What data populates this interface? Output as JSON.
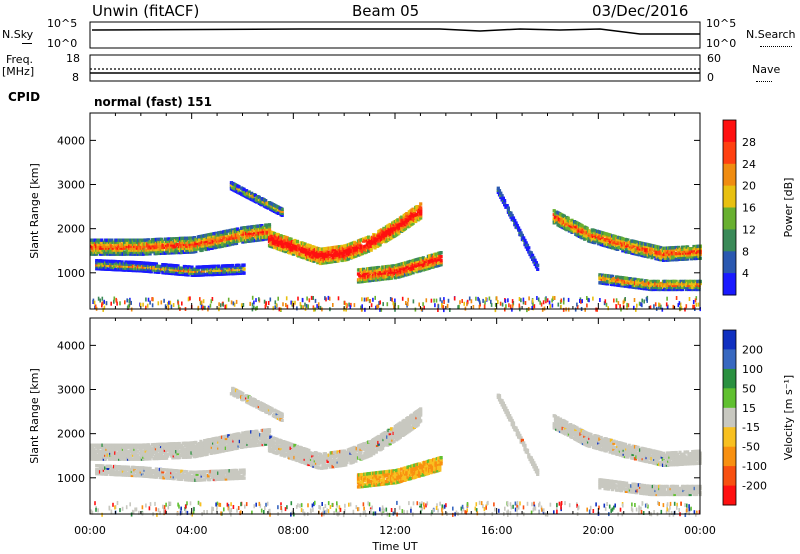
{
  "header": {
    "station_label": "Unwin (fitACF)",
    "beam_label": "Beam 05",
    "date_label": "03/Dec/2016"
  },
  "top_panels": {
    "nsky_label": "N.Sky",
    "nsky_ticks": [
      "10^5",
      "10^0"
    ],
    "nsearch_label": "N.Search",
    "nsearch_ticks": [
      "10^5",
      "10^0"
    ],
    "freq_label": "Freq.",
    "freq_unit": "[MHz]",
    "freq_ticks": [
      "18",
      "8"
    ],
    "nave_label": "Nave",
    "nave_ticks": [
      "60",
      "0"
    ],
    "cpid_label": "CPID",
    "cpid_value": "normal (fast) 151"
  },
  "chart_data": [
    {
      "type": "heatmap",
      "name": "power",
      "ylabel": "Slant Range [km]",
      "yticks": [
        "1000",
        "2000",
        "3000",
        "4000"
      ],
      "ylim": [
        180,
        4620
      ],
      "xlim": [
        0,
        24
      ],
      "colorbar_label": "Power [dB]",
      "colorbar_ticks": [
        "4",
        "8",
        "12",
        "16",
        "20",
        "24",
        "28"
      ],
      "colors": [
        "#1a1aff",
        "#2a58b0",
        "#3a8a58",
        "#68b030",
        "#e8c010",
        "#f08c10",
        "#ff4010",
        "#ff1010"
      ],
      "bands": [
        {
          "t": [
            0.0,
            2.0,
            4.0,
            6.0,
            7.0
          ],
          "r": [
            1600,
            1600,
            1650,
            1880,
            1950
          ],
          "w": 160,
          "c": 0.55
        },
        {
          "t": [
            7.0,
            8.0,
            9.0,
            10.0,
            11.0,
            12.0,
            13.0
          ],
          "r": [
            1800,
            1600,
            1400,
            1480,
            1700,
            2050,
            2450
          ],
          "w": 170,
          "c": 0.8
        },
        {
          "t": [
            0.2,
            2.0,
            4.0,
            6.0
          ],
          "r": [
            1200,
            1150,
            1050,
            1100
          ],
          "w": 90,
          "c": 0.3
        },
        {
          "t": [
            10.5,
            12.0,
            13.8
          ],
          "r": [
            950,
            1050,
            1350
          ],
          "w": 140,
          "c": 0.7
        },
        {
          "t": [
            5.5,
            6.5,
            7.5
          ],
          "r": [
            3000,
            2700,
            2400
          ],
          "w": 80,
          "c": 0.3
        },
        {
          "t": [
            18.2,
            19.5,
            21.0,
            22.5,
            24.0
          ],
          "r": [
            2300,
            1900,
            1650,
            1450,
            1500
          ],
          "w": 150,
          "c": 0.55
        },
        {
          "t": [
            20.0,
            22.0,
            24.0
          ],
          "r": [
            900,
            750,
            750
          ],
          "w": 110,
          "c": 0.45
        },
        {
          "t": [
            16.0,
            16.8,
            17.6
          ],
          "r": [
            2900,
            2000,
            1100
          ],
          "w": 60,
          "c": 0.1
        }
      ]
    },
    {
      "type": "heatmap",
      "name": "velocity",
      "ylabel": "Slant Range [km]",
      "yticks": [
        "1000",
        "2000",
        "3000",
        "4000"
      ],
      "ylim": [
        180,
        4620
      ],
      "xlim": [
        0,
        24
      ],
      "xlabel": "Time UT",
      "xticks": [
        "00:00",
        "04:00",
        "08:00",
        "12:00",
        "16:00",
        "20:00",
        "00:00"
      ],
      "colorbar_label": "Velocity [m s⁻¹]",
      "colorbar_ticks": [
        "200",
        "100",
        "50",
        "15",
        "-15",
        "-50",
        "-100",
        "-200"
      ],
      "colors": [
        "#1030c0",
        "#3868c0",
        "#2a9040",
        "#60c030",
        "#c8c8c0",
        "#f8c020",
        "#f89010",
        "#f85010",
        "#ff1010"
      ],
      "bands": [
        {
          "t": [
            0.0,
            2.0,
            4.0,
            6.0,
            7.0
          ],
          "r": [
            1600,
            1600,
            1650,
            1880,
            1950
          ],
          "w": 160,
          "c": 0.0
        },
        {
          "t": [
            7.0,
            8.0,
            9.0,
            10.0,
            11.0,
            12.0,
            13.0
          ],
          "r": [
            1800,
            1600,
            1400,
            1480,
            1700,
            2050,
            2450
          ],
          "w": 170,
          "c": 0.0
        },
        {
          "t": [
            0.2,
            2.0,
            4.0,
            6.0
          ],
          "r": [
            1200,
            1150,
            1050,
            1100
          ],
          "w": 90,
          "c": 0.0
        },
        {
          "t": [
            10.5,
            12.0,
            13.8
          ],
          "r": [
            950,
            1050,
            1350
          ],
          "w": 140,
          "c": 0.6
        },
        {
          "t": [
            5.5,
            6.5,
            7.5
          ],
          "r": [
            3000,
            2700,
            2400
          ],
          "w": 80,
          "c": 0.0
        },
        {
          "t": [
            18.2,
            19.5,
            21.0,
            22.5,
            24.0
          ],
          "r": [
            2300,
            1900,
            1650,
            1450,
            1500
          ],
          "w": 150,
          "c": 0.0
        },
        {
          "t": [
            20.0,
            22.0,
            24.0
          ],
          "r": [
            900,
            750,
            750
          ],
          "w": 110,
          "c": 0.0
        },
        {
          "t": [
            16.0,
            16.8,
            17.6
          ],
          "r": [
            2900,
            2000,
            1100
          ],
          "w": 60,
          "c": 0.0
        }
      ]
    }
  ]
}
